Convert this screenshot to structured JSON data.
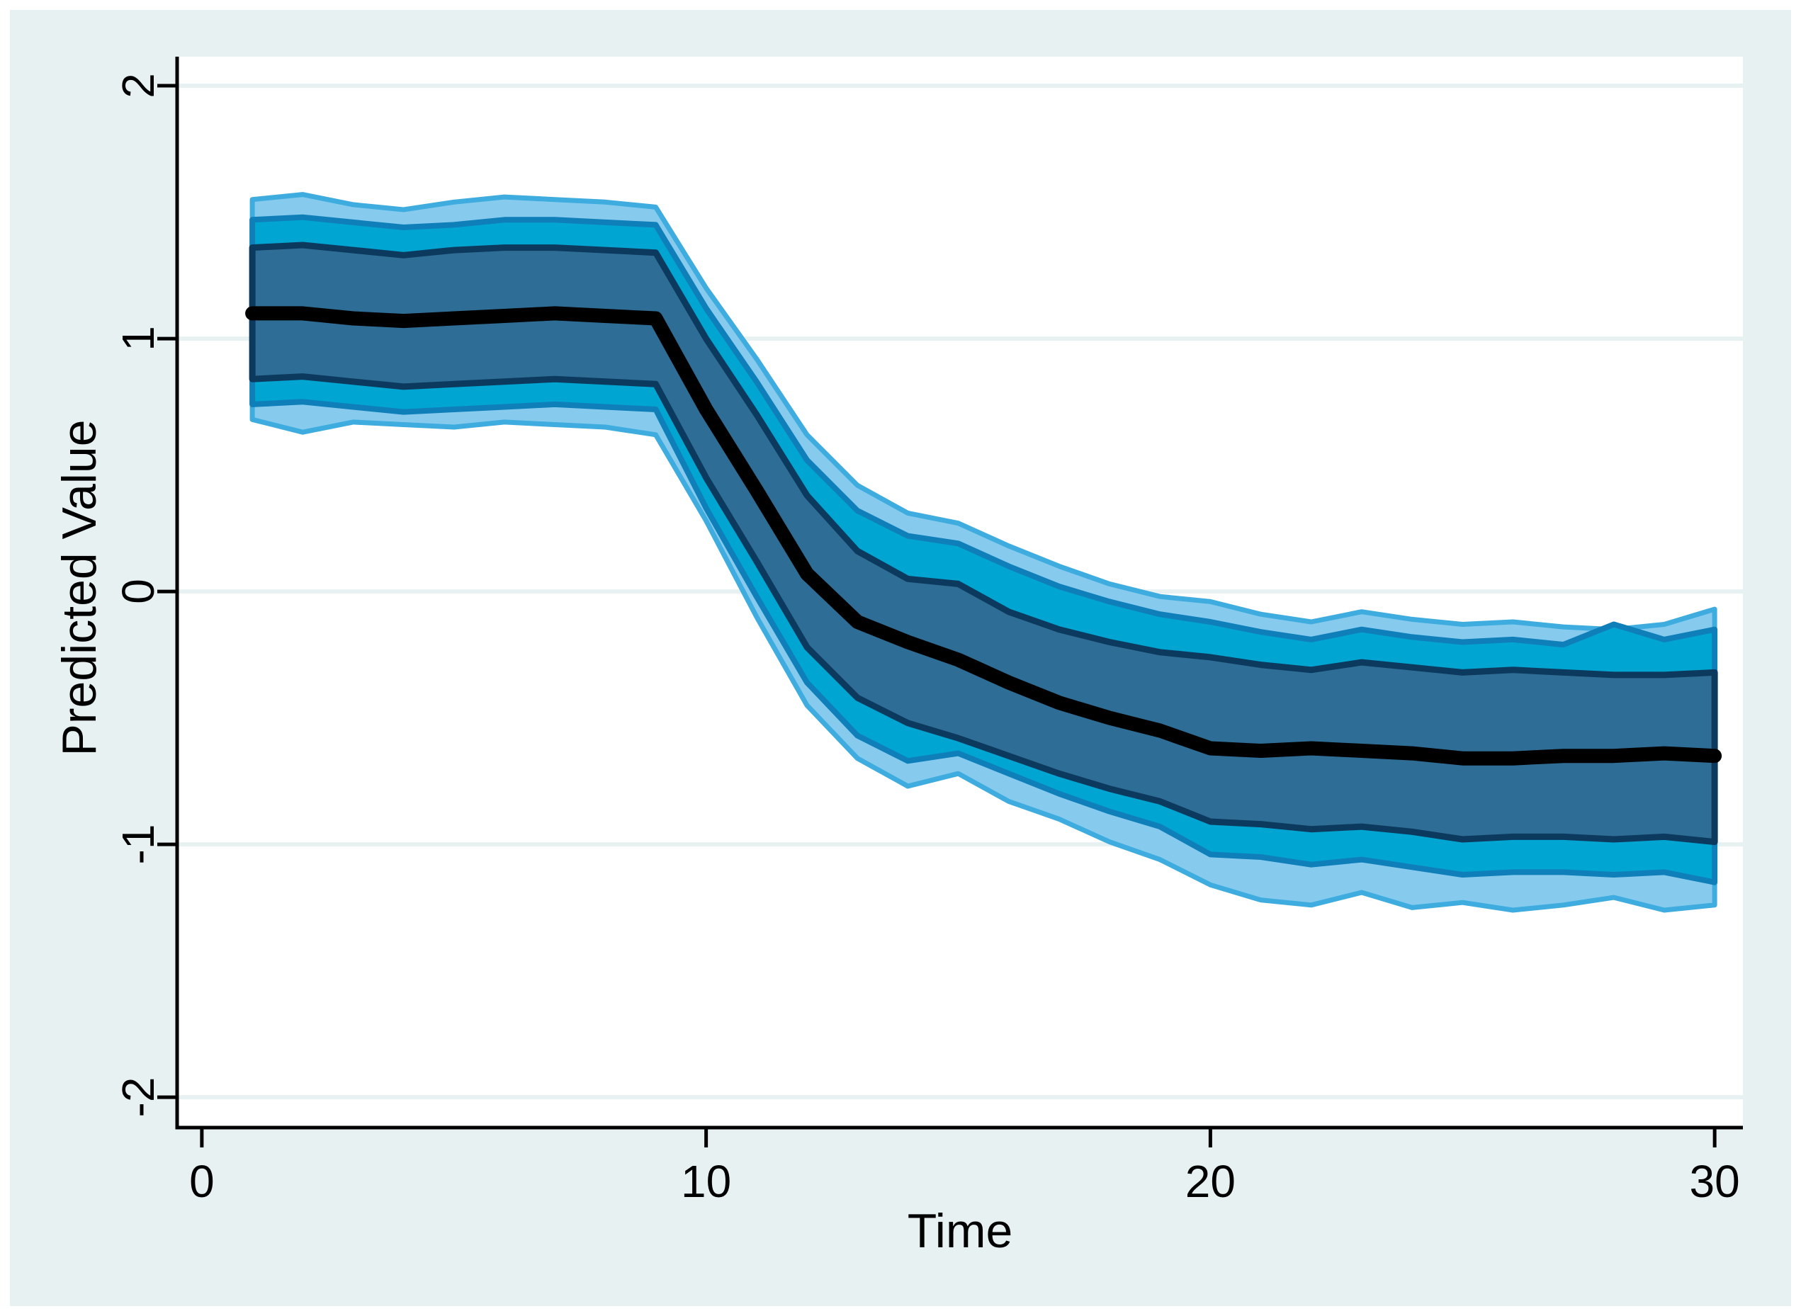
{
  "figure": {
    "page_background": "#FFFFFF",
    "panel_color": "#E8F1F2",
    "plot_background": "#FFFFFF",
    "grid_color": "#E8F1F2",
    "axis_color": "#000000",
    "text_color": "#000000"
  },
  "axes": {
    "x": {
      "label": "Time",
      "ticks": [
        0,
        10,
        20,
        30
      ],
      "tick_labels": [
        "0",
        "10",
        "20",
        "30"
      ]
    },
    "y": {
      "label": "Predicted Value",
      "ticks": [
        2,
        1,
        0,
        -1,
        -2
      ],
      "tick_labels": [
        "2",
        "1",
        "0",
        "-1",
        "-2"
      ]
    }
  },
  "chart_data": {
    "type": "line",
    "title": "",
    "xlabel": "Time",
    "ylabel": "Predicted Value",
    "xlim": [
      -0.49,
      30.56
    ],
    "ylim": [
      -2.12,
      2.115
    ],
    "grid": "horizontal-only",
    "xticks": [
      0,
      10,
      20,
      30
    ],
    "yticks": [
      2,
      1,
      0,
      -1,
      -2
    ],
    "x": [
      1,
      2,
      3,
      4,
      5,
      6,
      7,
      8,
      9,
      10,
      11,
      12,
      13,
      14,
      15,
      16,
      17,
      18,
      19,
      20,
      21,
      22,
      23,
      24,
      25,
      26,
      27,
      28,
      29,
      30
    ],
    "series": [
      {
        "name": "outer-confidence-band",
        "kind": "band",
        "fill": "#86CBEE",
        "edge": "#3EACDE",
        "edge_width": 7,
        "hi": [
          1.55,
          1.57,
          1.53,
          1.51,
          1.54,
          1.56,
          1.55,
          1.54,
          1.52,
          1.2,
          0.92,
          0.62,
          0.42,
          0.31,
          0.27,
          0.18,
          0.1,
          0.03,
          -0.02,
          -0.04,
          -0.09,
          -0.12,
          -0.08,
          -0.11,
          -0.13,
          -0.12,
          -0.14,
          -0.15,
          -0.13,
          -0.07
        ],
        "lo": [
          0.68,
          0.63,
          0.67,
          0.66,
          0.65,
          0.67,
          0.66,
          0.65,
          0.62,
          0.28,
          -0.1,
          -0.45,
          -0.66,
          -0.77,
          -0.72,
          -0.83,
          -0.9,
          -0.99,
          -1.06,
          -1.16,
          -1.22,
          -1.24,
          -1.19,
          -1.25,
          -1.23,
          -1.26,
          -1.24,
          -1.21,
          -1.26,
          -1.24
        ]
      },
      {
        "name": "middle-confidence-band",
        "kind": "band",
        "fill": "#00A5D1",
        "edge": "#0F7FBA",
        "edge_width": 8,
        "hi": [
          1.47,
          1.48,
          1.46,
          1.44,
          1.45,
          1.47,
          1.47,
          1.46,
          1.45,
          1.12,
          0.83,
          0.52,
          0.32,
          0.22,
          0.19,
          0.1,
          0.02,
          -0.04,
          -0.09,
          -0.12,
          -0.16,
          -0.19,
          -0.15,
          -0.18,
          -0.2,
          -0.19,
          -0.21,
          -0.13,
          -0.19,
          -0.15
        ],
        "lo": [
          0.74,
          0.75,
          0.73,
          0.71,
          0.72,
          0.73,
          0.74,
          0.73,
          0.72,
          0.33,
          -0.02,
          -0.36,
          -0.57,
          -0.67,
          -0.64,
          -0.72,
          -0.8,
          -0.87,
          -0.93,
          -1.04,
          -1.05,
          -1.08,
          -1.06,
          -1.09,
          -1.12,
          -1.11,
          -1.11,
          -1.12,
          -1.11,
          -1.15
        ]
      },
      {
        "name": "inner-confidence-band",
        "kind": "band",
        "fill": "#2E6D95",
        "edge": "#0C3A5E",
        "edge_width": 9,
        "hi": [
          1.36,
          1.37,
          1.35,
          1.33,
          1.35,
          1.36,
          1.36,
          1.35,
          1.34,
          1.0,
          0.7,
          0.38,
          0.16,
          0.05,
          0.03,
          -0.08,
          -0.15,
          -0.2,
          -0.24,
          -0.26,
          -0.29,
          -0.31,
          -0.28,
          -0.3,
          -0.32,
          -0.31,
          -0.32,
          -0.33,
          -0.33,
          -0.32
        ],
        "lo": [
          0.84,
          0.85,
          0.83,
          0.81,
          0.82,
          0.83,
          0.84,
          0.83,
          0.82,
          0.45,
          0.12,
          -0.22,
          -0.42,
          -0.52,
          -0.58,
          -0.65,
          -0.72,
          -0.78,
          -0.83,
          -0.91,
          -0.92,
          -0.94,
          -0.93,
          -0.95,
          -0.98,
          -0.97,
          -0.97,
          -0.98,
          -0.97,
          -0.99
        ]
      },
      {
        "name": "predicted-mean-line",
        "kind": "line",
        "color": "#000000",
        "width": 20,
        "values": [
          1.1,
          1.1,
          1.08,
          1.07,
          1.08,
          1.09,
          1.1,
          1.09,
          1.08,
          0.72,
          0.4,
          0.07,
          -0.12,
          -0.2,
          -0.27,
          -0.36,
          -0.44,
          -0.5,
          -0.55,
          -0.62,
          -0.63,
          -0.62,
          -0.63,
          -0.64,
          -0.66,
          -0.66,
          -0.65,
          -0.65,
          -0.64,
          -0.65
        ]
      }
    ]
  }
}
